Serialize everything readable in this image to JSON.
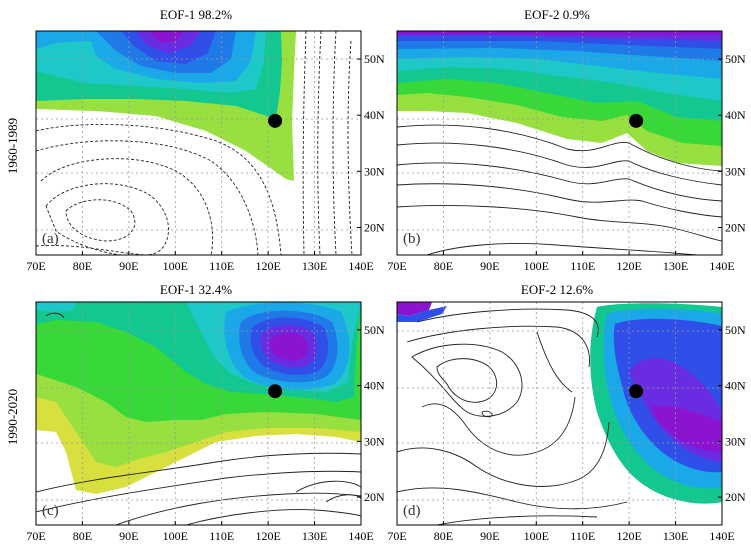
{
  "row_labels": [
    "1960-1989",
    "1990-2020"
  ],
  "panels": [
    {
      "id": "a",
      "tag": "(a)",
      "title": "EOF-1   98.2%",
      "style": "a"
    },
    {
      "id": "b",
      "tag": "(b)",
      "title": "EOF-2  0.9%",
      "style": "b"
    },
    {
      "id": "c",
      "tag": "(c)",
      "title": "EOF-1   32.4%",
      "style": "c"
    },
    {
      "id": "d",
      "tag": "(d)",
      "title": "EOF-2  12.6%",
      "style": "d"
    }
  ],
  "x_ticks": [
    "70E",
    "80E",
    "90E",
    "100E",
    "110E",
    "120E",
    "130E",
    "140E"
  ],
  "y_ticks": [
    "50N",
    "40N",
    "30N",
    "20N"
  ],
  "marker": {
    "lon": 121.5,
    "lat": 39.0
  },
  "colors": {
    "purple": "#8a14d0",
    "violet": "#6a2ce0",
    "blue": "#2f4fe8",
    "blue2": "#1f7ae8",
    "sky": "#1aa8e8",
    "cyan": "#1ec8c8",
    "teal": "#12c890",
    "green": "#38d838",
    "lime": "#98e040",
    "yellow": "#d8e040",
    "contour": "#222222",
    "grid": "#9a9a9a"
  }
}
